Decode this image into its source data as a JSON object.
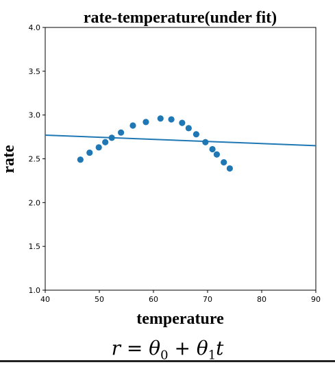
{
  "chart_data": {
    "type": "scatter",
    "title": "rate-temperature(under fit)",
    "xlabel": "temperature",
    "ylabel": "rate",
    "xlim": [
      40,
      90
    ],
    "ylim": [
      1.0,
      4.0
    ],
    "xticks": [
      "40",
      "50",
      "60",
      "70",
      "80",
      "90"
    ],
    "yticks": [
      "1.0",
      "1.5",
      "2.0",
      "2.5",
      "3.0",
      "3.5",
      "4.0"
    ],
    "grid": false,
    "point_color": "#1f77b4",
    "line_color": "#1f77b4",
    "points": [
      {
        "x": 46.5,
        "y": 2.49
      },
      {
        "x": 48.2,
        "y": 2.57
      },
      {
        "x": 49.9,
        "y": 2.63
      },
      {
        "x": 51.1,
        "y": 2.69
      },
      {
        "x": 52.3,
        "y": 2.74
      },
      {
        "x": 54.0,
        "y": 2.8
      },
      {
        "x": 56.2,
        "y": 2.88
      },
      {
        "x": 58.6,
        "y": 2.92
      },
      {
        "x": 61.3,
        "y": 2.96
      },
      {
        "x": 63.3,
        "y": 2.95
      },
      {
        "x": 65.3,
        "y": 2.91
      },
      {
        "x": 66.5,
        "y": 2.85
      },
      {
        "x": 67.9,
        "y": 2.78
      },
      {
        "x": 69.6,
        "y": 2.69
      },
      {
        "x": 70.9,
        "y": 2.61
      },
      {
        "x": 71.7,
        "y": 2.55
      },
      {
        "x": 73.0,
        "y": 2.46
      },
      {
        "x": 74.1,
        "y": 2.39
      }
    ],
    "fit_line": {
      "x": [
        40,
        90
      ],
      "y": [
        2.77,
        2.65
      ]
    }
  },
  "formula": {
    "r": "r",
    "eq": "=",
    "theta": "θ",
    "sub0": "0",
    "plus": "+",
    "sub1": "1",
    "t": "t"
  }
}
